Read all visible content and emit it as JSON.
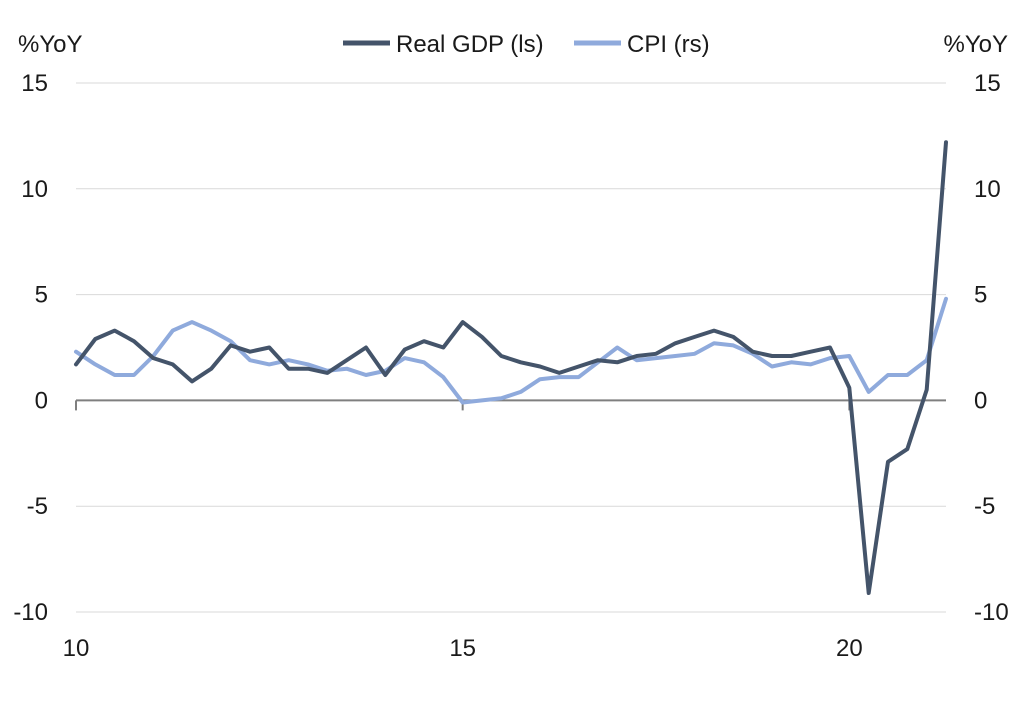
{
  "chart_data": {
    "type": "line",
    "title": "",
    "y_left_unit": "%YoY",
    "y_right_unit": "%YoY",
    "ylim_left": [
      -10,
      15
    ],
    "ylim_right": [
      -10,
      15
    ],
    "yticks": [
      "15",
      "10",
      "5",
      "0",
      "-5",
      "-10"
    ],
    "x_range": [
      10,
      21.25
    ],
    "xticks": [
      {
        "value": 10,
        "label": "10"
      },
      {
        "value": 15,
        "label": "15"
      },
      {
        "value": 20,
        "label": "20"
      }
    ],
    "grid": true,
    "legend_position": "top-center",
    "series": [
      {
        "name": "Real GDP (ls)",
        "axis": "left",
        "color": "#44546a",
        "x": [
          10.0,
          10.25,
          10.5,
          10.75,
          11.0,
          11.25,
          11.5,
          11.75,
          12.0,
          12.25,
          12.5,
          12.75,
          13.0,
          13.25,
          13.5,
          13.75,
          14.0,
          14.25,
          14.5,
          14.75,
          15.0,
          15.25,
          15.5,
          15.75,
          16.0,
          16.25,
          16.5,
          16.75,
          17.0,
          17.25,
          17.5,
          17.75,
          18.0,
          18.25,
          18.5,
          18.75,
          19.0,
          19.25,
          19.5,
          19.75,
          20.0,
          20.25,
          20.5,
          20.75,
          21.0,
          21.25
        ],
        "values": [
          1.7,
          2.9,
          3.3,
          2.8,
          2.0,
          1.7,
          0.9,
          1.5,
          2.6,
          2.3,
          2.5,
          1.5,
          1.5,
          1.3,
          1.9,
          2.5,
          1.2,
          2.4,
          2.8,
          2.5,
          3.7,
          3.0,
          2.1,
          1.8,
          1.6,
          1.3,
          1.6,
          1.9,
          1.8,
          2.1,
          2.2,
          2.7,
          3.0,
          3.3,
          3.0,
          2.3,
          2.1,
          2.1,
          2.3,
          2.5,
          0.6,
          -9.1,
          -2.9,
          -2.3,
          0.5,
          12.2
        ]
      },
      {
        "name": "CPI (rs)",
        "axis": "right",
        "color": "#8faadc",
        "x": [
          10.0,
          10.25,
          10.5,
          10.75,
          11.0,
          11.25,
          11.5,
          11.75,
          12.0,
          12.25,
          12.5,
          12.75,
          13.0,
          13.25,
          13.5,
          13.75,
          14.0,
          14.25,
          14.5,
          14.75,
          15.0,
          15.25,
          15.5,
          15.75,
          16.0,
          16.25,
          16.5,
          16.75,
          17.0,
          17.25,
          17.5,
          17.75,
          18.0,
          18.25,
          18.5,
          18.75,
          19.0,
          19.25,
          19.5,
          19.75,
          20.0,
          20.25,
          20.5,
          20.75,
          21.0,
          21.25
        ],
        "values": [
          2.3,
          1.7,
          1.2,
          1.2,
          2.1,
          3.3,
          3.7,
          3.3,
          2.8,
          1.9,
          1.7,
          1.9,
          1.7,
          1.4,
          1.5,
          1.2,
          1.4,
          2.0,
          1.8,
          1.1,
          -0.1,
          0.0,
          0.1,
          0.4,
          1.0,
          1.1,
          1.1,
          1.8,
          2.5,
          1.9,
          2.0,
          2.1,
          2.2,
          2.7,
          2.6,
          2.2,
          1.6,
          1.8,
          1.7,
          2.0,
          2.1,
          0.4,
          1.2,
          1.2,
          1.9,
          4.8
        ]
      }
    ]
  }
}
